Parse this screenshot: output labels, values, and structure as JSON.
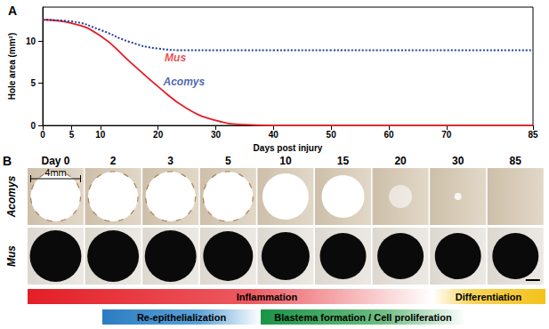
{
  "panel_labels": [
    "A",
    "B"
  ],
  "chart_data": {
    "type": "line",
    "x": [
      0,
      5,
      10,
      15,
      20,
      25,
      30,
      35,
      40,
      50,
      60,
      70,
      85
    ],
    "xlabel": "Days post injury",
    "ylabel": "Hole area (mm²)",
    "xlim": [
      0,
      85
    ],
    "xticks": [
      0,
      5,
      10,
      20,
      30,
      40,
      50,
      60,
      70,
      85
    ],
    "ylim": [
      0,
      14
    ],
    "yticks": [
      0,
      5,
      10
    ],
    "grid": false,
    "series": [
      {
        "color": "#e41e26",
        "line_style": "solid",
        "values": [
          12.5,
          12.1,
          10.6,
          7.6,
          4.6,
          2.0,
          0.6,
          0.1,
          0,
          0,
          0,
          0,
          0
        ]
      },
      {
        "color": "#1d3f9a",
        "line_style": "dotted",
        "values": [
          12.5,
          12.3,
          11.3,
          9.9,
          9.1,
          8.9,
          8.9,
          8.9,
          8.9,
          8.9,
          8.9,
          8.9,
          8.9
        ]
      }
    ],
    "annotations": [
      {
        "text": "Mus",
        "x": 23,
        "y": 8.0
      },
      {
        "text": "Acomys",
        "x": 24.5,
        "y": 5.2
      }
    ]
  },
  "panel_b": {
    "columns": [
      "Day 0",
      "2",
      "3",
      "5",
      "10",
      "15",
      "20",
      "30",
      "85"
    ],
    "rows": [
      "Acomys",
      "Mus"
    ],
    "scale_bar": "4mm",
    "phases": [
      {
        "label": "Inflammation"
      },
      {
        "label": "Differentiation"
      },
      {
        "label": "Re-epithelialization"
      },
      {
        "label": "Blastema formation / Cell proliferation"
      }
    ]
  }
}
